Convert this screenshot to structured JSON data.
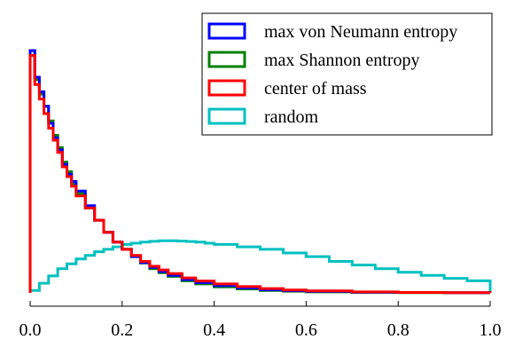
{
  "chart_data": {
    "type": "line",
    "step_histogram": true,
    "xlim": [
      0.0,
      1.0
    ],
    "xticks": [
      0.0,
      0.2,
      0.4,
      0.6,
      0.8,
      1.0
    ],
    "xtick_labels": [
      "0.0",
      "0.2",
      "0.4",
      "0.6",
      "0.8",
      "1.0"
    ],
    "ylim": [
      0,
      1.0
    ],
    "y_axis_shown": false,
    "grid": false,
    "legend_position": "top-right",
    "legend": [
      "max von Neumann entropy",
      "max Shannon entropy",
      "center of mass",
      "random"
    ],
    "colors": {
      "max von Neumann entropy": "#0000ff",
      "max Shannon entropy": "#008000",
      "center of mass": "#ff0000",
      "random": "#00c0c0"
    },
    "series": [
      {
        "name": "max von Neumann entropy",
        "x": [
          0.0,
          0.01,
          0.02,
          0.03,
          0.04,
          0.05,
          0.06,
          0.07,
          0.08,
          0.09,
          0.1,
          0.12,
          0.14,
          0.16,
          0.18,
          0.2,
          0.22,
          0.24,
          0.26,
          0.28,
          0.3,
          0.33,
          0.36,
          0.4,
          0.45,
          0.5,
          0.55,
          0.6,
          0.7,
          0.8,
          0.9,
          1.0
        ],
        "y": [
          1.0,
          0.89,
          0.83,
          0.77,
          0.7,
          0.64,
          0.59,
          0.53,
          0.49,
          0.46,
          0.42,
          0.36,
          0.3,
          0.25,
          0.21,
          0.18,
          0.15,
          0.125,
          0.105,
          0.088,
          0.072,
          0.055,
          0.042,
          0.03,
          0.02,
          0.013,
          0.009,
          0.006,
          0.003,
          0.002,
          0.001,
          0.0
        ]
      },
      {
        "name": "max Shannon entropy",
        "x": [
          0.0,
          0.01,
          0.02,
          0.03,
          0.04,
          0.05,
          0.06,
          0.07,
          0.08,
          0.09,
          0.1,
          0.12,
          0.14,
          0.16,
          0.18,
          0.2,
          0.22,
          0.24,
          0.26,
          0.28,
          0.3,
          0.33,
          0.36,
          0.4,
          0.45,
          0.5,
          0.55,
          0.6,
          0.7,
          0.8,
          0.9,
          1.0
        ],
        "y": [
          1.0,
          0.88,
          0.82,
          0.77,
          0.71,
          0.65,
          0.6,
          0.54,
          0.5,
          0.45,
          0.41,
          0.35,
          0.3,
          0.25,
          0.21,
          0.18,
          0.15,
          0.123,
          0.1,
          0.083,
          0.068,
          0.05,
          0.037,
          0.025,
          0.016,
          0.01,
          0.007,
          0.004,
          0.002,
          0.001,
          0.0005,
          0.0
        ]
      },
      {
        "name": "center of mass",
        "x": [
          0.0,
          0.01,
          0.02,
          0.03,
          0.04,
          0.05,
          0.06,
          0.07,
          0.08,
          0.09,
          0.1,
          0.12,
          0.14,
          0.16,
          0.18,
          0.2,
          0.22,
          0.24,
          0.26,
          0.28,
          0.3,
          0.33,
          0.36,
          0.4,
          0.45,
          0.5,
          0.55,
          0.6,
          0.7,
          0.8,
          0.9,
          1.0
        ],
        "y": [
          0.98,
          0.86,
          0.8,
          0.74,
          0.68,
          0.63,
          0.58,
          0.52,
          0.48,
          0.44,
          0.4,
          0.35,
          0.3,
          0.25,
          0.21,
          0.18,
          0.155,
          0.13,
          0.11,
          0.095,
          0.08,
          0.062,
          0.049,
          0.037,
          0.026,
          0.018,
          0.012,
          0.008,
          0.004,
          0.002,
          0.001,
          0.0
        ]
      },
      {
        "name": "random",
        "x": [
          0.0,
          0.02,
          0.04,
          0.06,
          0.08,
          0.1,
          0.12,
          0.14,
          0.16,
          0.18,
          0.2,
          0.22,
          0.24,
          0.26,
          0.28,
          0.3,
          0.32,
          0.34,
          0.36,
          0.38,
          0.4,
          0.45,
          0.5,
          0.55,
          0.6,
          0.65,
          0.7,
          0.75,
          0.8,
          0.85,
          0.9,
          0.95,
          1.0
        ],
        "y": [
          0.01,
          0.04,
          0.07,
          0.1,
          0.12,
          0.14,
          0.155,
          0.17,
          0.18,
          0.19,
          0.2,
          0.205,
          0.21,
          0.213,
          0.215,
          0.215,
          0.214,
          0.212,
          0.21,
          0.205,
          0.2,
          0.19,
          0.18,
          0.165,
          0.15,
          0.13,
          0.115,
          0.1,
          0.085,
          0.072,
          0.06,
          0.05,
          0.04
        ]
      }
    ]
  }
}
